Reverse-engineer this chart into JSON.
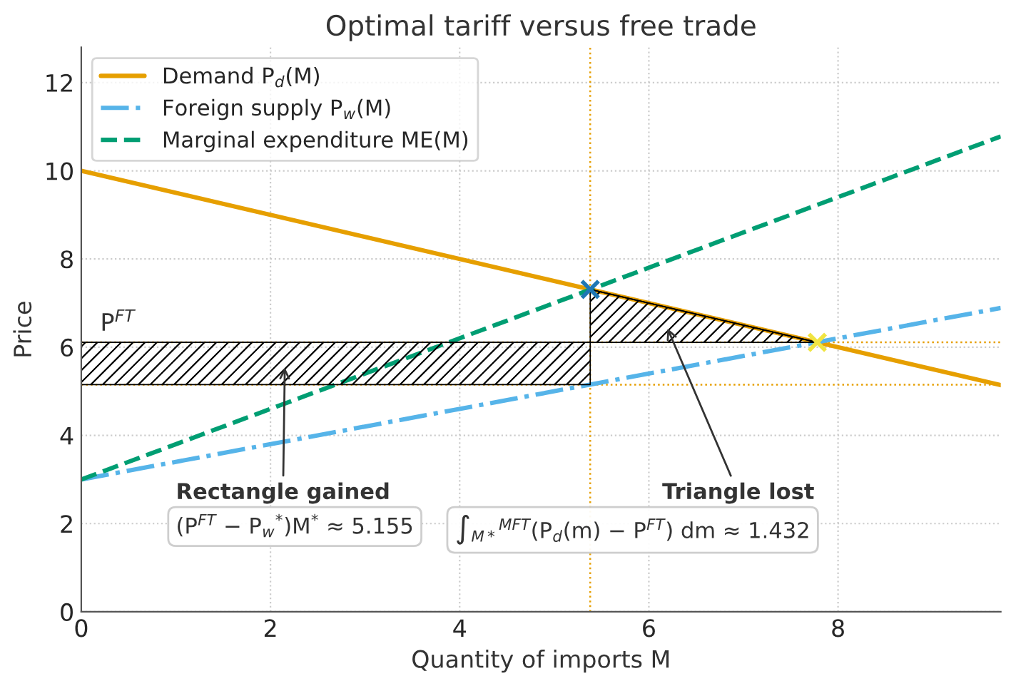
{
  "chart_data": {
    "type": "line",
    "title": "Optimal tariff versus free trade",
    "xlabel": "Quantity of imports M",
    "ylabel": "Price",
    "xlim": [
      0,
      9.72
    ],
    "ylim": [
      0,
      12.8
    ],
    "xticks": [
      0,
      2,
      4,
      6,
      8
    ],
    "yticks": [
      0,
      2,
      4,
      6,
      8,
      10,
      12
    ],
    "grid": true,
    "legend": "top left",
    "series": [
      {
        "name": "Demand P$_{d}$(M)",
        "color": "#e69f00",
        "x": [
          0,
          9.72
        ],
        "values": [
          10,
          5.14
        ],
        "line_style": "solid"
      },
      {
        "name": "Foreign supply P$_{w}$(M)",
        "color": "#56b4e9",
        "x": [
          0,
          9.72
        ],
        "values": [
          3,
          6.89
        ],
        "line_style": "dashdot"
      },
      {
        "name": "Marginal expenditure ME(M)",
        "color": "#009e73",
        "x": [
          0,
          9.72
        ],
        "values": [
          3,
          10.78
        ],
        "line_style": "dashed"
      },
      {
        "type": "line",
        "color": "#000000",
        "x": [
          0,
          5.38
        ],
        "values": [
          6.11,
          6.11
        ],
        "lower": [
          5.15,
          5.15
        ],
        "upper": [
          6.11,
          6.11
        ]
      },
      {
        "type": "line",
        "color": "#000000",
        "x": [
          5.38,
          7.78
        ],
        "values": [
          7.31,
          6.11
        ],
        "lower": [
          6.11,
          6.11
        ],
        "upper": [
          7.31,
          6.11
        ]
      },
      {
        "type": "scatter",
        "color": "#1f77b4",
        "x": [
          5.38
        ],
        "values": [
          7.31
        ],
        "marker": "cross"
      },
      {
        "type": "scatter",
        "color": "#f0e442",
        "x": [
          7.78
        ],
        "values": [
          6.11
        ],
        "marker": "cross"
      }
    ],
    "ref_lines": [
      {
        "axis": "x",
        "value": 5.38,
        "color": "#e69f00",
        "line_style": "dotted"
      },
      {
        "axis": "y",
        "value": 6.11,
        "label": "P$^{FT}$",
        "color": "#e69f00",
        "line_style": "dotted"
      },
      {
        "axis": "y",
        "value": 5.15,
        "color": "#e69f00",
        "line_style": "dotted"
      }
    ],
    "annotations": [
      "Rectangle gained",
      "(P$^{FT}$ − P$_{w}$$^{*}$)M$^{*}$ ≈ 5.155",
      "Triangle lost",
      "∫$_{M*}$$^{MFT}$(P$_{d}$(m) − P$^{FT}$) dm ≈ 1.432"
    ]
  }
}
